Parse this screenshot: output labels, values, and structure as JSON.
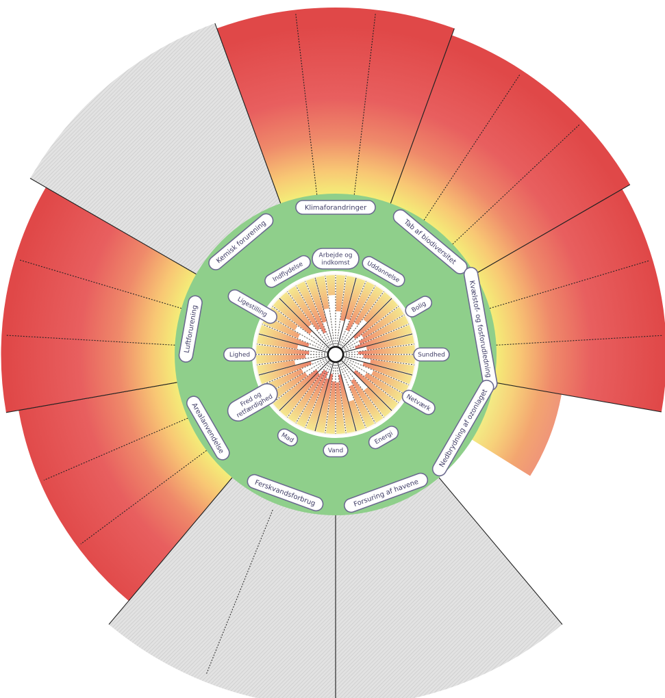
{
  "colors": {
    "safe_ring": "#8fcf8b",
    "overshoot_red": "#e24e4e",
    "overshoot_pink": "#ea6a6a",
    "overshoot_yellow": "#f4ec78",
    "overshoot_orange": "#f6a86a",
    "unknown_gray": "#d9d9d9",
    "pill_border": "#6b6a8f",
    "pill_text": "#3f3d66"
  },
  "ecological_ceiling": [
    {
      "label": "Klimaforandringer",
      "status": "overshoot",
      "level": 0.97
    },
    {
      "label": "Tab af biodiversitet",
      "status": "overshoot",
      "level": 0.93
    },
    {
      "label": "Kvælstof- og fosforudledning",
      "status": "overshoot",
      "level": 0.88
    },
    {
      "label": "Nedbrydning af ozonlaget",
      "status": "within",
      "level": 0.0
    },
    {
      "label": "Forsuring af havene",
      "status": "unknown",
      "level": 1.0
    },
    {
      "label": "Ferskvandsforbrug",
      "status": "unknown",
      "level": 1.0
    },
    {
      "label": "Arealanvendelse",
      "status": "overshoot",
      "level": 0.83
    },
    {
      "label": "Luftforurening",
      "status": "overshoot",
      "level": 0.9
    },
    {
      "label": "Kemisk forurening",
      "status": "unknown",
      "level": 1.0
    }
  ],
  "social_foundation": [
    {
      "label": "Arbejde og indkomst",
      "shortfall": 0.78
    },
    {
      "label": "Uddannelse",
      "shortfall": 0.55
    },
    {
      "label": "Bolig",
      "shortfall": 0.35
    },
    {
      "label": "Sundhed",
      "shortfall": 0.4
    },
    {
      "label": "Netværk",
      "shortfall": 0.5
    },
    {
      "label": "Energi",
      "shortfall": 0.62
    },
    {
      "label": "Vand",
      "shortfall": 0.3
    },
    {
      "label": "Mad",
      "shortfall": 0.25
    },
    {
      "label": "Fred og retfærdighed",
      "shortfall": 0.45
    },
    {
      "label": "Lighed",
      "shortfall": 0.5
    },
    {
      "label": "Ligestilling",
      "shortfall": 0.6
    },
    {
      "label": "Indflydelse",
      "shortfall": 0.45
    }
  ]
}
